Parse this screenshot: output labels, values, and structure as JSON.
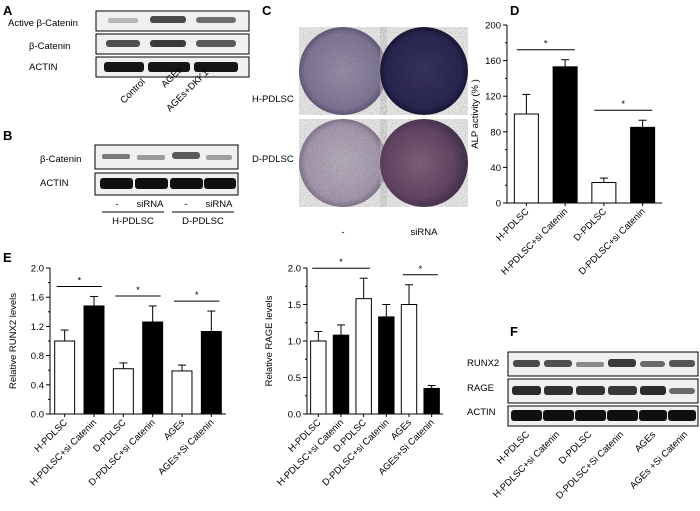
{
  "panels": {
    "A": {
      "letter": "A",
      "rows": [
        "Active β-Catenin",
        "β-Catenin",
        "ACTIN"
      ],
      "lanes": [
        "Control",
        "AGEs",
        "AGEs+DKK1"
      ]
    },
    "B": {
      "letter": "B",
      "rows": [
        "β-Catenin",
        "ACTIN"
      ],
      "lanes": [
        "-",
        "siRNA",
        "-",
        "siRNA"
      ],
      "groups": [
        "H-PDLSC",
        "D-PDLSC"
      ]
    },
    "C": {
      "letter": "C",
      "rows": [
        "H-PDLSC",
        "D-PDLSC"
      ],
      "cols": [
        "-",
        "siRNA"
      ]
    },
    "F": {
      "letter": "F",
      "rows": [
        "RUNX2",
        "RAGE",
        "ACTIN"
      ],
      "lanes": [
        "H-PDLSC",
        "H-PDLSC+si Catenin",
        "D-PDLSC",
        "D-PDLSC+Si Catenin",
        "AGEs",
        "AGEs +Si Catenin"
      ]
    }
  },
  "chart_data": [
    {
      "letter": "D",
      "type": "bar",
      "ylabel": "ALP activity (% )",
      "ylim": [
        0,
        200
      ],
      "yticks": [
        0,
        40,
        80,
        120,
        160,
        200
      ],
      "categories": [
        "H-PDLSC",
        "H-PDLSC+si Catenin",
        "D-PDLSC",
        "D-PDLSC+si Catenin"
      ],
      "values": [
        100,
        153,
        23,
        85
      ],
      "errors": [
        22,
        8,
        5,
        8
      ],
      "fills": [
        "#ffffff",
        "#000000",
        "#ffffff",
        "#000000"
      ],
      "significance": [
        {
          "from": 0,
          "to": 1,
          "label": "*"
        },
        {
          "from": 2,
          "to": 3,
          "label": "*"
        }
      ]
    },
    {
      "letter": "E",
      "type": "bar",
      "ylabel": "Relative RUNX2 levels",
      "ylim": [
        0,
        2.0
      ],
      "yticks": [
        "0.0",
        "0.4",
        "0.8",
        "1.2",
        "1.6",
        "2.0"
      ],
      "categories": [
        "H-PDLSC",
        "H-PDLSC+si Catenin",
        "D-PDLSC",
        "D-PDLSC+si Catenin",
        "AGEs",
        "AGEs+Si Catenin"
      ],
      "values": [
        1.0,
        1.48,
        0.62,
        1.26,
        0.59,
        1.13
      ],
      "errors": [
        0.15,
        0.13,
        0.08,
        0.22,
        0.08,
        0.28
      ],
      "fills": [
        "#ffffff",
        "#000000",
        "#ffffff",
        "#000000",
        "#ffffff",
        "#000000"
      ],
      "significance": [
        {
          "from": 0,
          "to": 1,
          "label": "*"
        },
        {
          "from": 2,
          "to": 3,
          "label": "*"
        },
        {
          "from": 4,
          "to": 5,
          "label": "*"
        }
      ]
    },
    {
      "letter": "",
      "type": "bar",
      "ylabel": "Relative RAGE levels",
      "ylim": [
        0,
        2.0
      ],
      "yticks": [
        "0.0",
        "0.5",
        "1.0",
        "1.5",
        "2.0"
      ],
      "categories": [
        "H-PDLSC",
        "H-PDLSC+si Catenin",
        "D-PDLSC",
        "D-PDLSC+si Catenin",
        "AGEs",
        "AGEs+Si Catenin"
      ],
      "values": [
        1.0,
        1.08,
        1.58,
        1.33,
        1.5,
        0.35
      ],
      "errors": [
        0.13,
        0.14,
        0.28,
        0.17,
        0.27,
        0.04
      ],
      "fills": [
        "#ffffff",
        "#000000",
        "#ffffff",
        "#000000",
        "#ffffff",
        "#000000"
      ],
      "significance": [
        {
          "from": 0,
          "to": 2,
          "label": "*"
        },
        {
          "from": 4,
          "to": 5,
          "label": "*"
        }
      ]
    }
  ]
}
